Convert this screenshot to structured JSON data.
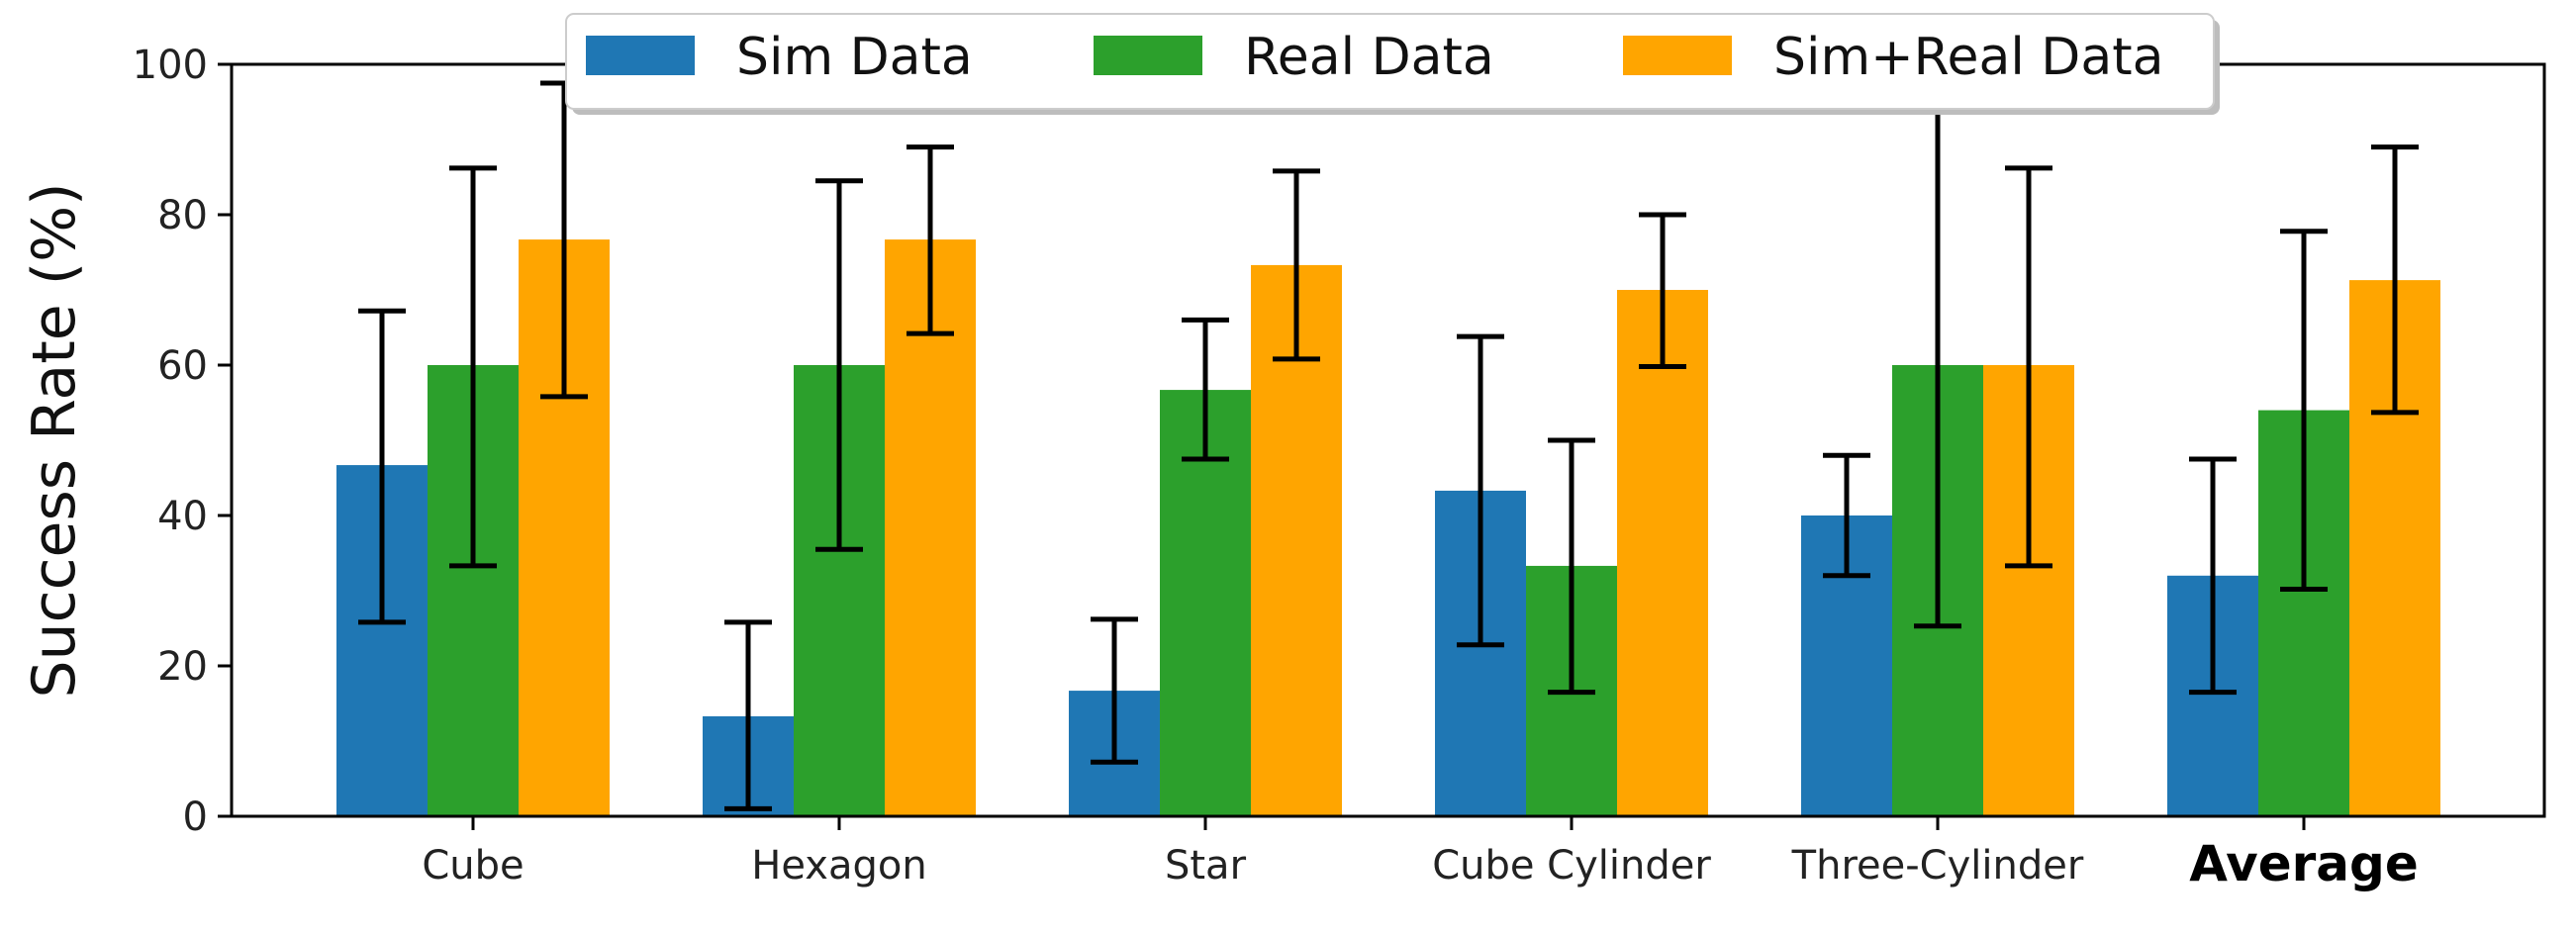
{
  "chart_data": {
    "type": "bar",
    "title": "",
    "xlabel": "",
    "ylabel": "Success Rate (%)",
    "ylim": [
      0,
      100
    ],
    "yticks": [
      0,
      20,
      40,
      60,
      80,
      100
    ],
    "grid": false,
    "legend_position": "top-center",
    "emphasized_category": "Average",
    "categories": [
      "Cube",
      "Hexagon",
      "Star",
      "Cube Cylinder",
      "Three-Cylinder",
      "Average"
    ],
    "series": [
      {
        "name": "Sim Data",
        "color": "#1f77b4",
        "values": [
          46.7,
          13.3,
          16.7,
          43.3,
          40.0,
          32.0
        ],
        "error_low": [
          25.8,
          1.0,
          7.2,
          22.8,
          32.0,
          16.5
        ],
        "error_high": [
          67.2,
          25.8,
          26.2,
          63.8,
          48.0,
          47.5
        ]
      },
      {
        "name": "Real Data",
        "color": "#2ca02c",
        "values": [
          60.0,
          60.0,
          56.7,
          33.3,
          60.0,
          54.0
        ],
        "error_low": [
          33.3,
          35.5,
          47.5,
          16.5,
          25.3,
          30.2
        ],
        "error_high": [
          86.2,
          84.5,
          66.0,
          50.0,
          94.8,
          77.8
        ]
      },
      {
        "name": "Sim+Real Data",
        "color": "#ffa500",
        "values": [
          76.7,
          76.7,
          73.3,
          70.0,
          60.0,
          71.3
        ],
        "error_low": [
          55.8,
          64.2,
          60.8,
          59.8,
          33.3,
          53.7
        ],
        "error_high": [
          97.5,
          89.0,
          85.8,
          80.0,
          86.2,
          89.0
        ]
      }
    ]
  }
}
